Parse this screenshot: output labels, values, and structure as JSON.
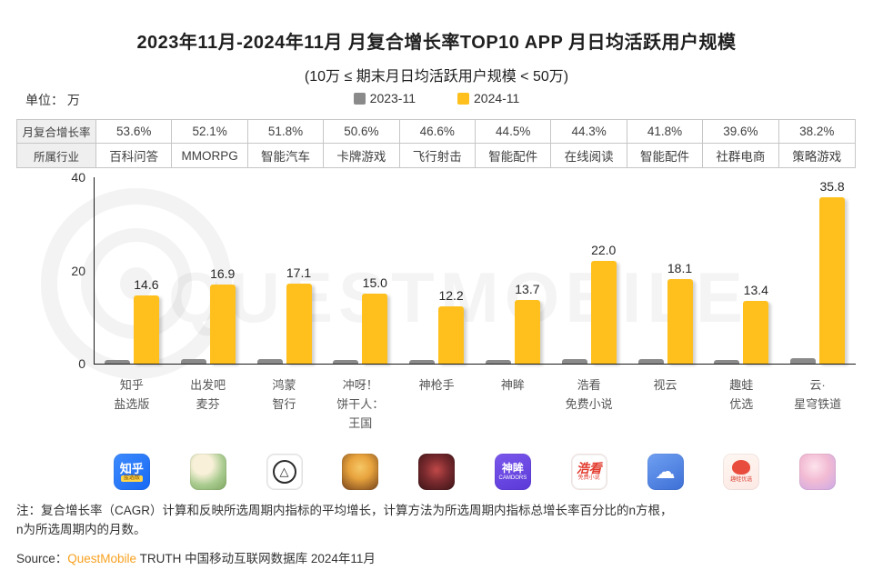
{
  "title": "2023年11月-2024年11月 月复合增长率TOP10 APP 月日均活跃用户规模",
  "subtitle": "(10万 ≤ 期末月日均活跃用户规模 < 50万)",
  "unit_label": "单位： 万",
  "legend": [
    {
      "label": "2023-11",
      "color": "#8a8a8a"
    },
    {
      "label": "2024-11",
      "color": "#ffc01e"
    }
  ],
  "table": {
    "row_headers": [
      "月复合增长率",
      "所属行业"
    ],
    "growth_rates": [
      "53.6%",
      "52.1%",
      "51.8%",
      "50.6%",
      "46.6%",
      "44.5%",
      "44.3%",
      "41.8%",
      "39.6%",
      "38.2%"
    ],
    "industries": [
      "百科问答",
      "MMORPG",
      "智能汽车",
      "卡牌游戏",
      "飞行射击",
      "智能配件",
      "在线阅读",
      "智能配件",
      "社群电商",
      "策略游戏"
    ]
  },
  "chart_data": {
    "type": "bar",
    "title": "2023年11月-2024年11月 月复合增长率TOP10 APP 月日均活跃用户规模",
    "ylabel": "单位：万",
    "ylim": [
      0,
      40
    ],
    "yticks": [
      0,
      20,
      40
    ],
    "grid": false,
    "legend_position": "top-center",
    "categories": [
      "知乎盐选版",
      "出发吧麦芬",
      "鸿蒙智行",
      "冲呀！饼干人：王国",
      "神枪手",
      "神眸",
      "浩看免费小说",
      "视云",
      "趣蛙优选",
      "云·星穹铁道"
    ],
    "series": [
      {
        "name": "2023-11",
        "values": [
          0.8,
          0.9,
          0.9,
          0.8,
          0.8,
          0.8,
          1.0,
          0.9,
          0.8,
          1.2
        ],
        "note": "values estimated from bar heights, not labeled"
      },
      {
        "name": "2024-11",
        "values": [
          14.6,
          16.9,
          17.1,
          15.0,
          12.2,
          13.7,
          22.0,
          18.1,
          13.4,
          35.8
        ]
      }
    ],
    "value_labels": [
      "14.6",
      "16.9",
      "17.1",
      "15.0",
      "12.2",
      "13.7",
      "22.0",
      "18.1",
      "13.4",
      "35.8"
    ]
  },
  "apps": [
    {
      "name": "知乎盐选版",
      "lines": [
        "知乎",
        "盐选版"
      ],
      "icon": "zhihu-icon",
      "icon_text": "知乎",
      "icon_sub": "盐选版",
      "bg": "linear-gradient(135deg,#3e8bff,#1668f2)",
      "fg": "#ffffff"
    },
    {
      "name": "出发吧麦芬",
      "lines": [
        "出发吧",
        "麦芬"
      ],
      "icon": "mafen-icon",
      "icon_text": "",
      "icon_sub": "",
      "bg": "radial-gradient(circle at 35% 30%,#f8f0d8 0%,#f8f0d8 28%,#a9cb8f 60%,#7ca45f 100%)",
      "fg": "#5c4326"
    },
    {
      "name": "鸿蒙智行",
      "lines": [
        "鸿蒙",
        "智行"
      ],
      "icon": "harmony-icon",
      "icon_text": "△",
      "icon_sub": "",
      "bg": "#ffffff",
      "fg": "#222222"
    },
    {
      "name": "冲呀！饼干人：王国",
      "lines": [
        "冲呀！",
        "饼干人：",
        "王国"
      ],
      "icon": "cookierun-icon",
      "icon_text": "",
      "icon_sub": "",
      "bg": "radial-gradient(circle at 50% 38%,#f5c766 0%,#e8a33d 40%,#9a6226 80%,#7a4a1c 100%)",
      "fg": "#ffffff"
    },
    {
      "name": "神枪手",
      "lines": [
        "神枪手"
      ],
      "icon": "gunner-icon",
      "icon_text": "",
      "icon_sub": "",
      "bg": "radial-gradient(circle at 50% 45%,#c04848 0%,#7a2a2e 45%,#3a1417 100%)",
      "fg": "#ffffff"
    },
    {
      "name": "神眸",
      "lines": [
        "神眸"
      ],
      "icon": "shenmou-icon",
      "icon_text": "神眸",
      "icon_sub": "CAMDORS",
      "bg": "linear-gradient(160deg,#7a58ec,#5b39d8)",
      "fg": "#ffffff"
    },
    {
      "name": "浩看免费小说",
      "lines": [
        "浩看",
        "免费小说"
      ],
      "icon": "haokan-icon",
      "icon_text": "浩看",
      "icon_sub": "免费小说",
      "bg": "#ffffff",
      "fg": "#e23b2e"
    },
    {
      "name": "视云",
      "lines": [
        "视云"
      ],
      "icon": "shiyun-icon",
      "icon_text": "☁",
      "icon_sub": "",
      "bg": "linear-gradient(150deg,#6fa0f2,#3d6fd6)",
      "fg": "#ffffff"
    },
    {
      "name": "趣蛙优选",
      "lines": [
        "趣蛙",
        "优选"
      ],
      "icon": "quwa-icon",
      "icon_text": "",
      "icon_sub": "趣蛙优选",
      "bg": "linear-gradient(160deg,#fff7f2,#fce8e4)",
      "fg": "#d94436"
    },
    {
      "name": "云·星穹铁道",
      "lines": [
        "云·",
        "星穹铁道"
      ],
      "icon": "starrail-icon",
      "icon_text": "",
      "icon_sub": "",
      "bg": "radial-gradient(circle at 42% 35%,#fde3ec 0%,#f2bbd3 45%,#cba8e6 100%)",
      "fg": "#9a5c86"
    }
  ],
  "note_lines": [
    "注：复合增长率（CAGR）计算和反映所选周期内指标的平均增长，计算方法为所选周期内指标总增长率百分比的n方根，",
    "n为所选周期内的月数。"
  ],
  "source": {
    "prefix": "Source：",
    "brand": "QuestMobile",
    "suffix": " TRUTH 中国移动互联网数据库 2024年11月",
    "brand_color": "#f8a120"
  },
  "watermark": "QUESTMOBILE",
  "colors": {
    "bar_2023": "#8a8a8a",
    "bar_2024": "#ffc01e",
    "table_header_bg": "#efefef",
    "table_border": "#c6c6c6"
  }
}
